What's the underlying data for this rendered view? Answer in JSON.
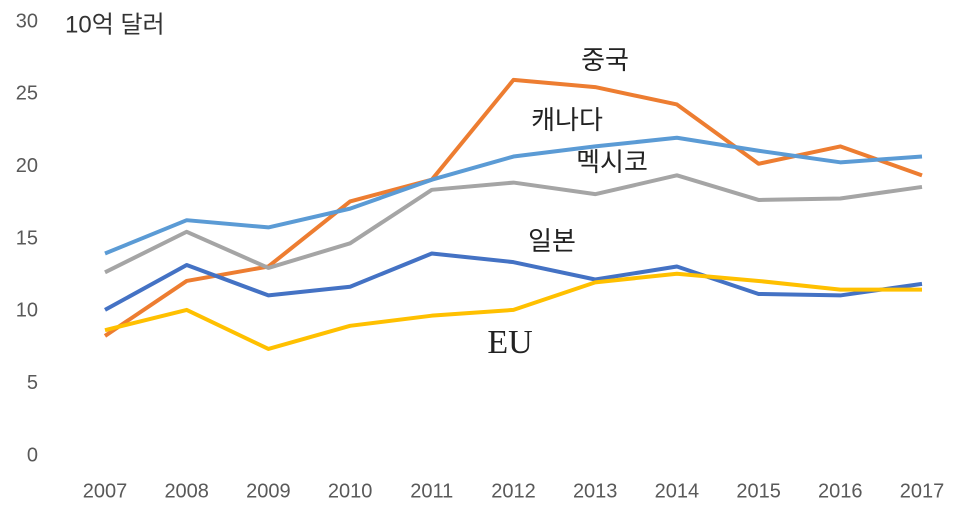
{
  "chart_data": {
    "type": "line",
    "y_axis_label": "10억 달러",
    "categories": [
      "2007",
      "2008",
      "2009",
      "2010",
      "2011",
      "2012",
      "2013",
      "2014",
      "2015",
      "2016",
      "2017"
    ],
    "ylim": [
      0,
      30
    ],
    "yticks": [
      0,
      5,
      10,
      15,
      20,
      25,
      30
    ],
    "grid": false,
    "series": [
      {
        "name": "중국",
        "color": "#ED7D31",
        "values": [
          8.3,
          12.1,
          13.1,
          17.6,
          19.1,
          26.0,
          25.5,
          24.3,
          20.2,
          21.4,
          19.4
        ]
      },
      {
        "name": "캐나다",
        "color": "#5B9BD5",
        "values": [
          14.0,
          16.3,
          15.8,
          17.1,
          19.1,
          20.7,
          21.4,
          22.0,
          21.1,
          20.3,
          20.7
        ]
      },
      {
        "name": "멕시코",
        "color": "#A5A5A5",
        "values": [
          12.7,
          15.5,
          13.0,
          14.7,
          18.4,
          18.9,
          18.1,
          19.4,
          17.7,
          17.8,
          18.6
        ]
      },
      {
        "name": "일본",
        "color": "#4472C4",
        "values": [
          10.1,
          13.2,
          11.1,
          11.7,
          14.0,
          13.4,
          12.2,
          13.1,
          11.2,
          11.1,
          11.9
        ]
      },
      {
        "name": "EU",
        "color": "#FFC000",
        "values": [
          8.7,
          10.1,
          7.4,
          9.0,
          9.7,
          10.1,
          12.0,
          12.6,
          12.1,
          11.5,
          11.5
        ]
      }
    ]
  }
}
